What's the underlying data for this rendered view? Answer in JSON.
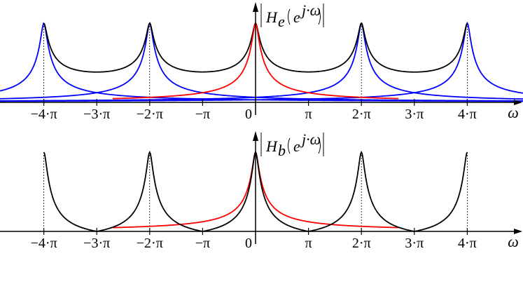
{
  "panels": [
    {
      "title": {
        "name": "H",
        "sub": "e",
        "arg_base": "e",
        "arg_exp": "j·ω"
      },
      "curves": [
        "prototype (red)",
        "shifted copies (blue)",
        "sum (black)"
      ]
    },
    {
      "title": {
        "name": "H",
        "sub": "b",
        "arg_base": "e",
        "arg_exp": "j·ω"
      },
      "curves": [
        "prototype (red)",
        "periodic (black)"
      ]
    }
  ],
  "x_axis_label": "ω",
  "tick_labels": [
    "−4·π",
    "−3·π",
    "−2·π",
    "−π",
    "0",
    "π",
    "2·π",
    "3·π",
    "4·π"
  ],
  "tick_values_pi": [
    -4,
    -3,
    -2,
    -1,
    0,
    1,
    2,
    3,
    4
  ],
  "colors": {
    "prototype": "#ff0000",
    "copies": "#0000ff",
    "sum": "#000000"
  }
}
